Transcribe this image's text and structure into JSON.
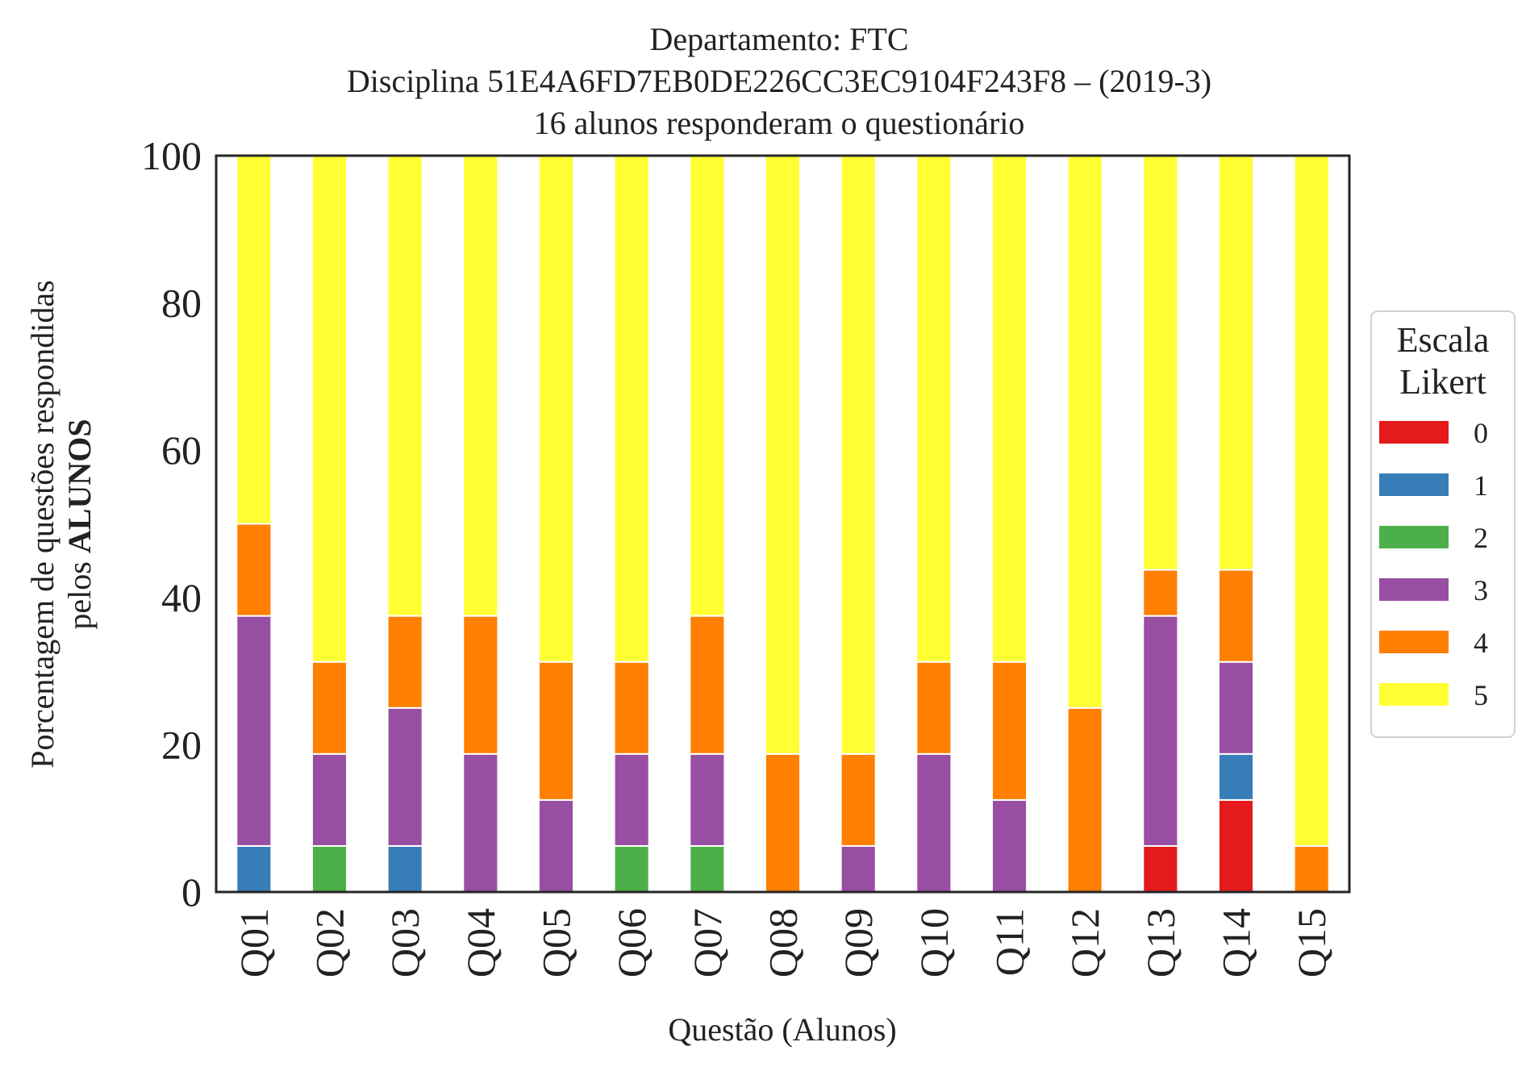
{
  "chart_data": {
    "type": "bar",
    "stacked": true,
    "title_lines": [
      "Departamento: FTC",
      "Disciplina 51E4A6FD7EB0DE226CC3EC9104F243F8 – (2019-3)",
      "16 alunos responderam o questionário"
    ],
    "xlabel": "Questão (Alunos)",
    "ylabel_line1": "Porcentagem de questões respondidas",
    "ylabel_line2_prefix": "pelos ",
    "ylabel_line2_bold": "ALUNOS",
    "ylim": [
      0,
      100
    ],
    "yticks": [
      "0",
      "20",
      "40",
      "60",
      "80",
      "100"
    ],
    "categories": [
      "Q01",
      "Q02",
      "Q03",
      "Q04",
      "Q05",
      "Q06",
      "Q07",
      "Q08",
      "Q09",
      "Q10",
      "Q11",
      "Q12",
      "Q13",
      "Q14",
      "Q15"
    ],
    "legend": {
      "title_lines": [
        "Escala",
        "Likert"
      ],
      "placement": "center-right"
    },
    "series": [
      {
        "name": "0",
        "color": "#e41a1c",
        "values": [
          0,
          0,
          0,
          0,
          0,
          0,
          0,
          0,
          0,
          0,
          0,
          0,
          6.25,
          12.5,
          0
        ]
      },
      {
        "name": "1",
        "color": "#377eb8",
        "values": [
          6.25,
          0,
          6.25,
          0,
          0,
          0,
          0,
          0,
          0,
          0,
          0,
          0,
          0,
          6.25,
          0
        ]
      },
      {
        "name": "2",
        "color": "#4daf4a",
        "values": [
          0,
          6.25,
          0,
          0,
          0,
          6.25,
          6.25,
          0,
          0,
          0,
          0,
          0,
          0,
          0,
          0
        ]
      },
      {
        "name": "3",
        "color": "#984ea3",
        "values": [
          31.25,
          12.5,
          18.75,
          18.75,
          12.5,
          12.5,
          12.5,
          0,
          6.25,
          18.75,
          12.5,
          0,
          31.25,
          12.5,
          0
        ]
      },
      {
        "name": "4",
        "color": "#ff7f00",
        "values": [
          12.5,
          12.5,
          12.5,
          18.75,
          18.75,
          12.5,
          18.75,
          18.75,
          12.5,
          12.5,
          18.75,
          25,
          6.25,
          12.5,
          6.25
        ]
      },
      {
        "name": "5",
        "color": "#ffff33",
        "values": [
          50,
          68.75,
          62.5,
          62.5,
          68.75,
          68.75,
          62.5,
          81.25,
          81.25,
          68.75,
          68.75,
          75,
          56.25,
          56.25,
          93.75
        ]
      }
    ]
  }
}
